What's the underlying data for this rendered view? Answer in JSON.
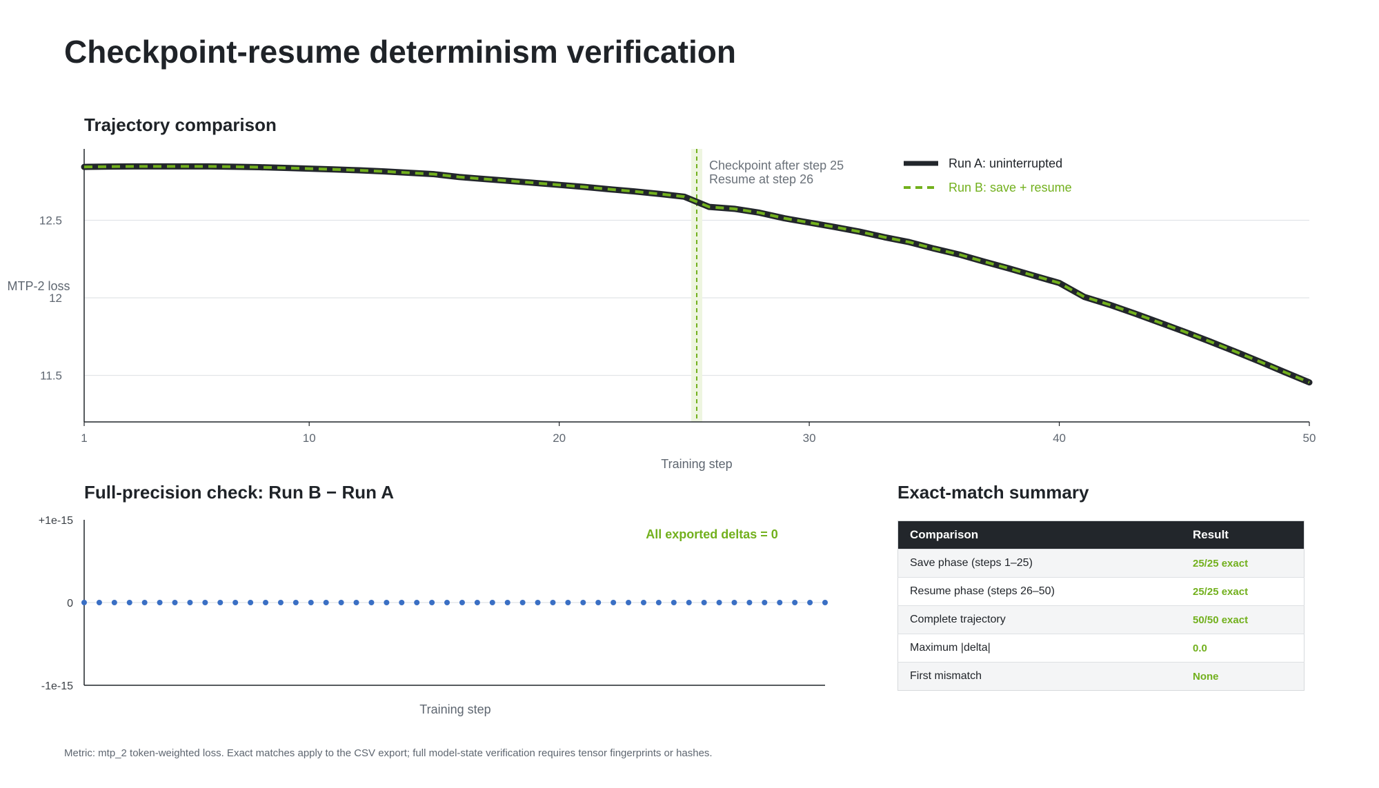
{
  "title": "Checkpoint-resume determinism verification",
  "trajectory": {
    "title": "Trajectory comparison"
  },
  "precision": {
    "title": "Full-precision check: Run B − Run A"
  },
  "summary": {
    "title": "Exact-match summary",
    "headers": [
      "Comparison",
      "Result"
    ],
    "rows": [
      {
        "comparison": "Save phase (steps 1–25)",
        "result": "25/25 exact"
      },
      {
        "comparison": "Resume phase (steps 26–50)",
        "result": "25/25 exact"
      },
      {
        "comparison": "Complete trajectory",
        "result": "50/50 exact"
      },
      {
        "comparison": "Maximum |delta|",
        "result": "0.0"
      },
      {
        "comparison": "First mismatch",
        "result": "None"
      }
    ]
  },
  "footnote": "Metric: mtp_2 token-weighted loss. Exact matches apply to the CSV export; full model-state verification requires tensor fingerprints or hashes.",
  "colors": {
    "run_a": "#22262b",
    "run_b": "#72b01d",
    "delta_points": "#3a6fc4",
    "checkpoint_band": "#eef5e0"
  },
  "chart_data": [
    {
      "type": "line",
      "xlabel": "Training step",
      "ylabel": "MTP-2 loss",
      "xlim": [
        1,
        50
      ],
      "ylim": [
        11.2,
        12.96
      ],
      "xticks": [
        1,
        10,
        20,
        30,
        40,
        50
      ],
      "yticks": [
        11.5,
        12.0,
        12.5
      ],
      "grid": "horizontal",
      "legend_position": "top-right",
      "x": [
        1,
        2,
        3,
        4,
        5,
        6,
        7,
        8,
        9,
        10,
        11,
        12,
        13,
        14,
        15,
        16,
        17,
        18,
        19,
        20,
        21,
        22,
        23,
        24,
        25,
        26,
        27,
        28,
        29,
        30,
        31,
        32,
        33,
        34,
        35,
        36,
        37,
        38,
        39,
        40,
        41,
        42,
        43,
        44,
        45,
        46,
        47,
        48,
        49,
        50
      ],
      "series": [
        {
          "name": "Run A: uninterrupted",
          "values": [
            12.844,
            12.846,
            12.847,
            12.847,
            12.847,
            12.847,
            12.845,
            12.842,
            12.838,
            12.833,
            12.828,
            12.822,
            12.815,
            12.806,
            12.797,
            12.779,
            12.766,
            12.754,
            12.741,
            12.728,
            12.715,
            12.7,
            12.686,
            12.67,
            12.652,
            12.586,
            12.574,
            12.549,
            12.513,
            12.485,
            12.457,
            12.427,
            12.391,
            12.359,
            12.317,
            12.279,
            12.233,
            12.189,
            12.142,
            12.096,
            12.006,
            11.956,
            11.9,
            11.841,
            11.782,
            11.72,
            11.656,
            11.59,
            11.522,
            11.455
          ]
        },
        {
          "name": "Run B: save + resume",
          "values": [
            12.844,
            12.846,
            12.847,
            12.847,
            12.847,
            12.847,
            12.845,
            12.842,
            12.838,
            12.833,
            12.828,
            12.822,
            12.815,
            12.806,
            12.797,
            12.779,
            12.766,
            12.754,
            12.741,
            12.728,
            12.715,
            12.7,
            12.686,
            12.67,
            12.652,
            12.586,
            12.574,
            12.549,
            12.513,
            12.485,
            12.457,
            12.427,
            12.391,
            12.359,
            12.317,
            12.279,
            12.233,
            12.189,
            12.142,
            12.096,
            12.006,
            11.956,
            11.9,
            11.841,
            11.782,
            11.72,
            11.656,
            11.59,
            11.522,
            11.455
          ]
        }
      ],
      "annotation": {
        "x": 25.5,
        "lines": [
          "Checkpoint after step 25",
          "Resume at step 26"
        ]
      }
    },
    {
      "type": "scatter",
      "xlabel": "Training step",
      "ylabel": "",
      "xlim": [
        1,
        50
      ],
      "ylim": [
        -1e-15,
        1e-15
      ],
      "yticks": [
        1e-15,
        0,
        -1e-15
      ],
      "ytick_labels": [
        "+1e-15",
        "0",
        "-1e-15"
      ],
      "x": [
        1,
        2,
        3,
        4,
        5,
        6,
        7,
        8,
        9,
        10,
        11,
        12,
        13,
        14,
        15,
        16,
        17,
        18,
        19,
        20,
        21,
        22,
        23,
        24,
        25,
        26,
        27,
        28,
        29,
        30,
        31,
        32,
        33,
        34,
        35,
        36,
        37,
        38,
        39,
        40,
        41,
        42,
        43,
        44,
        45,
        46,
        47,
        48,
        49,
        50
      ],
      "values": [
        0,
        0,
        0,
        0,
        0,
        0,
        0,
        0,
        0,
        0,
        0,
        0,
        0,
        0,
        0,
        0,
        0,
        0,
        0,
        0,
        0,
        0,
        0,
        0,
        0,
        0,
        0,
        0,
        0,
        0,
        0,
        0,
        0,
        0,
        0,
        0,
        0,
        0,
        0,
        0,
        0,
        0,
        0,
        0,
        0,
        0,
        0,
        0,
        0,
        0
      ],
      "annotation": "All exported deltas = 0"
    }
  ]
}
